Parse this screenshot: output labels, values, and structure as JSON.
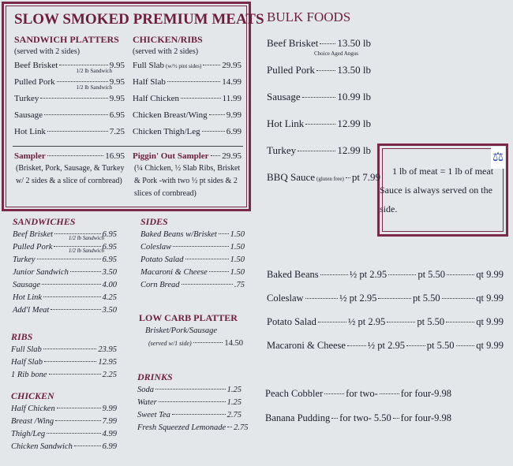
{
  "premium": {
    "title": "SLOW SMOKED PREMIUM MEATS",
    "platters": {
      "heading": "SANDWICH PLATTERS",
      "note": "(served with 2 sides)",
      "items": [
        {
          "name": "Beef Brisket",
          "price": "9.95",
          "note": "1/2 lb Sandwich"
        },
        {
          "name": "Pulled Pork",
          "price": "9.95",
          "note": "1/2 lb Sandwich"
        },
        {
          "name": "Turkey",
          "price": "9.95"
        },
        {
          "name": "Sausage",
          "price": "6.95"
        },
        {
          "name": "Hot Link",
          "price": "7.25"
        }
      ]
    },
    "chicken_ribs": {
      "heading": "CHICKEN/RIBS",
      "note": "(served with 2 sides)",
      "items": [
        {
          "name": "Full Slab",
          "detail": "(w/½ pint sides)",
          "price": "29.95"
        },
        {
          "name": "Half Slab",
          "price": "14.99"
        },
        {
          "name": "Half Chicken",
          "price": "11.99"
        },
        {
          "name": "Chicken Breast/Wing",
          "price": "9.99"
        },
        {
          "name": "Chicken Thigh/Leg",
          "price": "6.99"
        }
      ]
    },
    "samplers": [
      {
        "name": "Sampler",
        "price": "16.95",
        "description": "(Brisket, Pork, Sausage, & Turkey w/ 2 sides & a slice of cornbread)"
      },
      {
        "name": "Piggin' Out Sampler",
        "price": "29.95",
        "description": "(¼ Chicken, ½ Slab Ribs, Brisket & Pork -with two ½ pt sides & 2 slices of cornbread)"
      }
    ]
  },
  "sandwiches": {
    "heading": "SANDWICHES",
    "items": [
      {
        "name": "Beef Brisket",
        "price": "6.95",
        "note": "1/2 lb Sandwich"
      },
      {
        "name": "Pulled Pork",
        "price": "6.95",
        "note": "1/2 lb Sandwich"
      },
      {
        "name": "Turkey",
        "price": "6.95"
      },
      {
        "name": "Junior Sandwich",
        "price": "3.50"
      },
      {
        "name": "Sausage",
        "price": "4.00"
      },
      {
        "name": "Hot Link",
        "price": "4.25"
      },
      {
        "name": "Add'l Meat",
        "price": "3.50"
      }
    ]
  },
  "ribs": {
    "heading": "RIBS",
    "items": [
      {
        "name": "Full Slab",
        "price": "23.95"
      },
      {
        "name": "Half Slab",
        "price": "12.95"
      },
      {
        "name": "1 Rib bone",
        "price": "2.25"
      }
    ]
  },
  "chicken": {
    "heading": "CHICKEN",
    "items": [
      {
        "name": "Half Chicken",
        "price": "9.99"
      },
      {
        "name": "Breast /Wing",
        "price": "7.99"
      },
      {
        "name": "Thigh/Leg",
        "price": "4.99"
      },
      {
        "name": "Chicken Sandwich",
        "price": "6.99"
      }
    ]
  },
  "sides": {
    "heading": "SIDES",
    "items": [
      {
        "name": "Baked Beans w/Brisket",
        "price": "1.50"
      },
      {
        "name": "Coleslaw",
        "price": "1.50"
      },
      {
        "name": "Potato Salad",
        "price": "1.50"
      },
      {
        "name": "Macaroni & Cheese",
        "price": "1.50"
      },
      {
        "name": "Corn Bread",
        "price": ".75"
      }
    ]
  },
  "low_carb": {
    "heading": "LOW CARB PLATTER",
    "name": "Brisket/Pork/Sausage",
    "detail": "(served w/1 side)",
    "price": "14.50"
  },
  "drinks": {
    "heading": "DRINKS",
    "items": [
      {
        "name": "Soda",
        "price": "1.25"
      },
      {
        "name": "Water",
        "price": "1.25"
      },
      {
        "name": "Sweet Tea",
        "price": "2.75"
      },
      {
        "name": "Fresh Squeezed Lemonade",
        "price": "2.75"
      }
    ]
  },
  "bulk": {
    "heading": "BULK FOODS",
    "items": [
      {
        "name": "Beef Brisket",
        "price": "13.50 lb",
        "note": "Choice Aged Angus"
      },
      {
        "name": "Pulled Pork",
        "price": "13.50 lb"
      },
      {
        "name": "Sausage",
        "price": "10.99 lb"
      },
      {
        "name": "Hot Link",
        "price": "12.99 lb"
      },
      {
        "name": "Turkey",
        "price": "12.99 lb"
      },
      {
        "name": "BBQ Sauce",
        "detail": "(gluten free)",
        "price": "pt 7.99"
      }
    ]
  },
  "info_box": {
    "lines": [
      "1 lb of meat = 1 lb of meat",
      "Sauce is always served on the side."
    ]
  },
  "bulk_sides": {
    "items": [
      {
        "name": "Baked Beans",
        "prices": [
          "½ pt 2.95",
          "pt 5.50",
          "qt 9.99"
        ]
      },
      {
        "name": "Coleslaw",
        "prices": [
          "½ pt 2.95",
          "pt 5.50",
          "qt 9.99"
        ]
      },
      {
        "name": "Potato Salad",
        "prices": [
          "½ pt 2.95",
          "pt 5.50",
          "qt 9.99"
        ]
      },
      {
        "name": "Macaroni & Cheese",
        "prices": [
          "½ pt 2.95",
          "pt 5.50",
          "qt 9.99"
        ]
      }
    ]
  },
  "desserts": {
    "items": [
      {
        "name": "Peach Cobbler",
        "prices": [
          "for two-",
          "for four-9.98"
        ]
      },
      {
        "name": "Banana Pudding",
        "prices": [
          "for two- 5.50",
          "for four-9.98"
        ]
      }
    ]
  }
}
